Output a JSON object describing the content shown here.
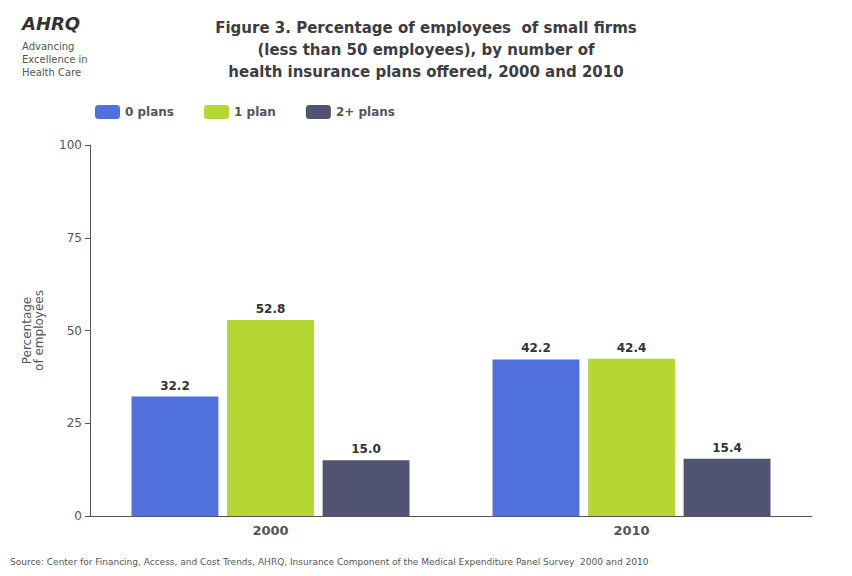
{
  "chart_data": {
    "type": "bar",
    "title": "Figure 3. Percentage of employees  of small firms\n(less than 50 employees), by number of\nhealth insurance plans offered, 2000 and 2010",
    "annotations": [
      "AHRQ",
      "Advancing\nExcellence in\nHealth Care",
      "Source: Center for Financing, Access, and Cost Trends, AHRQ, Insurance Component of the Medical Expenditure Panel Survey  2000 and 2010"
    ],
    "y_label": "Percentage\nof employees",
    "categories": [
      "2000",
      "2010"
    ],
    "series": [
      {
        "name": "0 plans",
        "values": [
          32.2,
          42.2
        ],
        "value_labels": [
          "32.2",
          "42.2"
        ]
      },
      {
        "name": "1 plan",
        "values": [
          52.8,
          42.4
        ],
        "value_labels": [
          "52.8",
          "42.4"
        ]
      },
      {
        "name": "2+ plans",
        "values": [
          15.0,
          15.4
        ],
        "value_labels": [
          "15.0",
          "15.4"
        ]
      }
    ],
    "ylim": [
      0,
      100
    ],
    "yticks": [
      0,
      25,
      50,
      75,
      100
    ],
    "grid": false,
    "legend": "upper left",
    "data_labels": true
  }
}
